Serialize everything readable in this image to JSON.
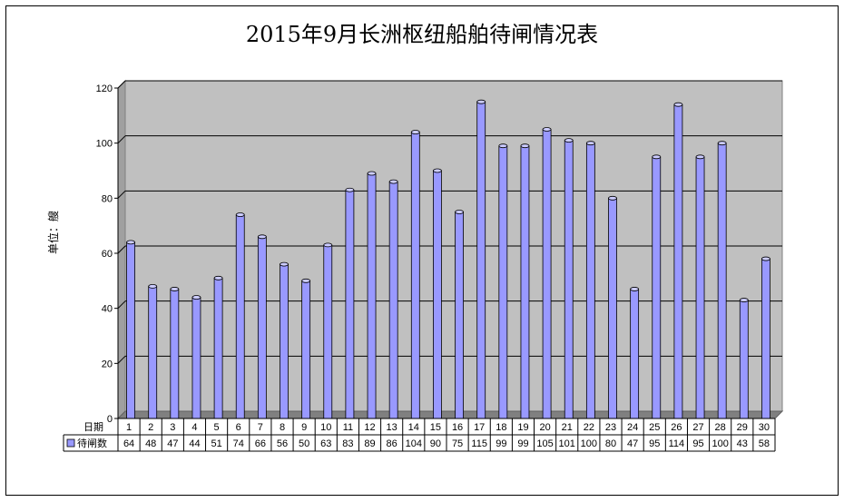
{
  "chart_data": {
    "type": "bar",
    "title": "2015年9月长洲枢纽船舶待闸情况表",
    "ylabel": "单位：艘",
    "ylim": [
      0,
      120
    ],
    "yticks": [
      0,
      20,
      40,
      60,
      80,
      100,
      120
    ],
    "grid": true,
    "table_row_header": "日期",
    "categories": [
      "1",
      "2",
      "3",
      "4",
      "5",
      "6",
      "7",
      "8",
      "9",
      "10",
      "11",
      "12",
      "13",
      "14",
      "15",
      "16",
      "17",
      "18",
      "19",
      "20",
      "21",
      "22",
      "23",
      "24",
      "25",
      "26",
      "27",
      "28",
      "29",
      "30"
    ],
    "series": [
      {
        "name": "待闸数",
        "color": "#9999ff",
        "values": [
          64,
          48,
          47,
          44,
          51,
          74,
          66,
          56,
          50,
          63,
          83,
          89,
          86,
          104,
          90,
          75,
          115,
          99,
          99,
          105,
          101,
          100,
          80,
          47,
          95,
          114,
          95,
          100,
          43,
          58
        ]
      }
    ]
  }
}
